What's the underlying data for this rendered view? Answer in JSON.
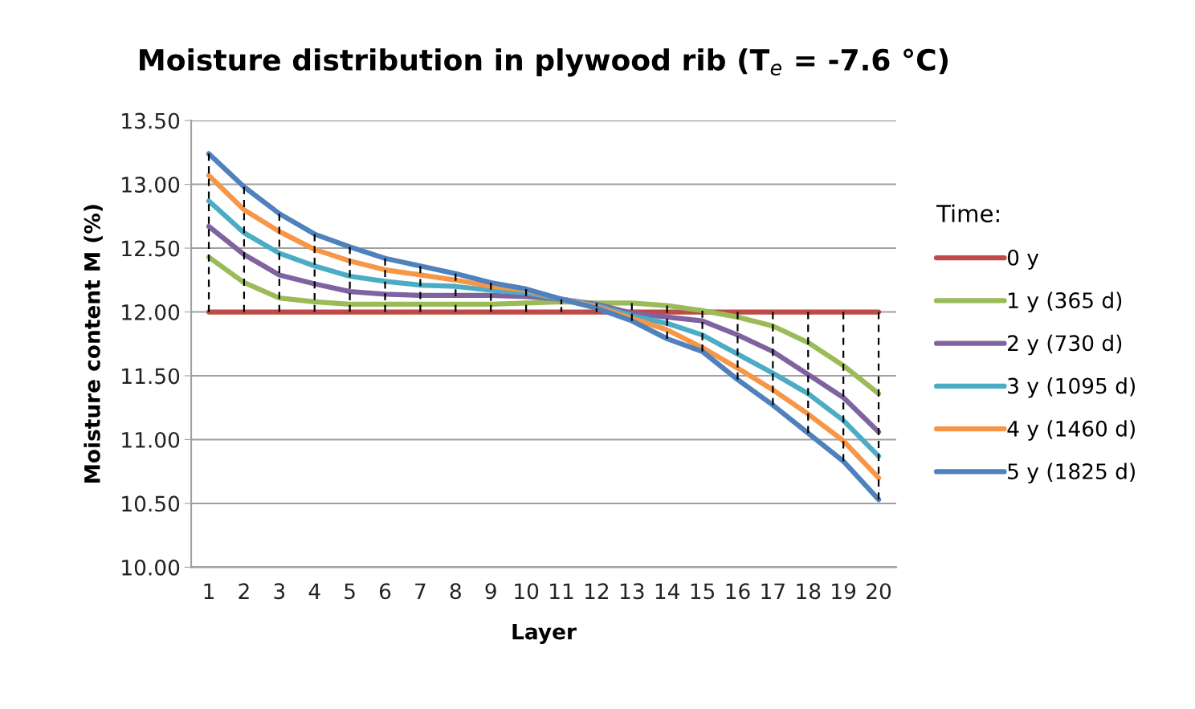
{
  "chart_data": {
    "type": "line",
    "title": "Moisture distribution in plywood rib (T$_{e}$ = -7.6 °C)",
    "xlabel": "Layer",
    "ylabel": "Moisture content M (%)",
    "legend_title": "Time:",
    "categories": [
      "1",
      "2",
      "3",
      "4",
      "5",
      "6",
      "7",
      "8",
      "9",
      "10",
      "11",
      "12",
      "13",
      "14",
      "15",
      "16",
      "17",
      "18",
      "19",
      "20"
    ],
    "series": [
      {
        "name": "0 y",
        "color": "#be4b48",
        "values": [
          12.0,
          12.0,
          12.0,
          12.0,
          12.0,
          12.0,
          12.0,
          12.0,
          12.0,
          12.0,
          12.0,
          12.0,
          12.0,
          12.0,
          12.0,
          12.0,
          12.0,
          12.0,
          12.0,
          12.0
        ]
      },
      {
        "name": "1 y (365 d)",
        "color": "#9bbb59",
        "values": [
          12.43,
          12.23,
          12.11,
          12.08,
          12.06,
          12.06,
          12.06,
          12.06,
          12.06,
          12.07,
          12.08,
          12.07,
          12.07,
          12.05,
          12.01,
          11.96,
          11.89,
          11.76,
          11.58,
          11.36
        ]
      },
      {
        "name": "2 y (730 d)",
        "color": "#7f63a1",
        "values": [
          12.67,
          12.45,
          12.29,
          12.22,
          12.16,
          12.14,
          12.13,
          12.13,
          12.13,
          12.12,
          12.1,
          12.06,
          11.99,
          11.96,
          11.93,
          11.82,
          11.69,
          11.51,
          11.33,
          11.06
        ]
      },
      {
        "name": "3 y (1095 d)",
        "color": "#4bacc6",
        "values": [
          12.87,
          12.62,
          12.46,
          12.36,
          12.28,
          12.24,
          12.21,
          12.2,
          12.17,
          12.15,
          12.1,
          12.05,
          11.97,
          11.91,
          11.82,
          11.67,
          11.52,
          11.36,
          11.15,
          10.87
        ]
      },
      {
        "name": "4 y (1460 d)",
        "color": "#f79646",
        "values": [
          13.07,
          12.8,
          12.63,
          12.49,
          12.4,
          12.33,
          12.29,
          12.25,
          12.2,
          12.17,
          12.1,
          12.04,
          11.95,
          11.86,
          11.72,
          11.56,
          11.39,
          11.2,
          10.99,
          10.7
        ]
      },
      {
        "name": "5 y (1825 d)",
        "color": "#4f81bd",
        "values": [
          13.24,
          12.98,
          12.77,
          12.61,
          12.51,
          12.42,
          12.36,
          12.3,
          12.23,
          12.18,
          12.1,
          12.03,
          11.93,
          11.79,
          11.69,
          11.47,
          11.27,
          11.05,
          10.83,
          10.53
        ]
      },
      {
        "color": "#000000",
        "line_style": "dashed",
        "x": [
          "1",
          "1"
        ],
        "values": [
          12.0,
          13.24
        ]
      },
      {
        "color": "#000000",
        "line_style": "dashed",
        "x": [
          "2",
          "2"
        ],
        "values": [
          12.0,
          12.98
        ]
      },
      {
        "color": "#000000",
        "line_style": "dashed",
        "x": [
          "3",
          "3"
        ],
        "values": [
          12.0,
          12.77
        ]
      },
      {
        "color": "#000000",
        "line_style": "dashed",
        "x": [
          "4",
          "4"
        ],
        "values": [
          12.0,
          12.61
        ]
      },
      {
        "color": "#000000",
        "line_style": "dashed",
        "x": [
          "5",
          "5"
        ],
        "values": [
          12.0,
          12.51
        ]
      },
      {
        "color": "#000000",
        "line_style": "dashed",
        "x": [
          "6",
          "6"
        ],
        "values": [
          12.0,
          12.42
        ]
      },
      {
        "color": "#000000",
        "line_style": "dashed",
        "x": [
          "7",
          "7"
        ],
        "values": [
          12.0,
          12.36
        ]
      },
      {
        "color": "#000000",
        "line_style": "dashed",
        "x": [
          "8",
          "8"
        ],
        "values": [
          12.0,
          12.3
        ]
      },
      {
        "color": "#000000",
        "line_style": "dashed",
        "x": [
          "9",
          "9"
        ],
        "values": [
          12.0,
          12.23
        ]
      },
      {
        "color": "#000000",
        "line_style": "dashed",
        "x": [
          "10",
          "10"
        ],
        "values": [
          12.0,
          12.18
        ]
      },
      {
        "color": "#000000",
        "line_style": "dashed",
        "x": [
          "11",
          "11"
        ],
        "values": [
          12.0,
          12.1
        ]
      },
      {
        "color": "#000000",
        "line_style": "dashed",
        "x": [
          "12",
          "12"
        ],
        "values": [
          12.0,
          12.07
        ]
      },
      {
        "color": "#000000",
        "line_style": "dashed",
        "x": [
          "13",
          "13"
        ],
        "values": [
          11.93,
          12.07
        ]
      },
      {
        "color": "#000000",
        "line_style": "dashed",
        "x": [
          "14",
          "14"
        ],
        "values": [
          11.79,
          12.05
        ]
      },
      {
        "color": "#000000",
        "line_style": "dashed",
        "x": [
          "15",
          "15"
        ],
        "values": [
          11.69,
          12.01
        ]
      },
      {
        "color": "#000000",
        "line_style": "dashed",
        "x": [
          "16",
          "16"
        ],
        "values": [
          11.47,
          12.0
        ]
      },
      {
        "color": "#000000",
        "line_style": "dashed",
        "x": [
          "17",
          "17"
        ],
        "values": [
          11.27,
          12.0
        ]
      },
      {
        "color": "#000000",
        "line_style": "dashed",
        "x": [
          "18",
          "18"
        ],
        "values": [
          11.05,
          12.0
        ]
      },
      {
        "color": "#000000",
        "line_style": "dashed",
        "x": [
          "19",
          "19"
        ],
        "values": [
          10.83,
          12.0
        ]
      },
      {
        "color": "#000000",
        "line_style": "dashed",
        "x": [
          "20",
          "20"
        ],
        "values": [
          10.53,
          12.0
        ]
      }
    ],
    "ylim": [
      10.0,
      13.5
    ],
    "yticks": [
      {
        "value": 10.0,
        "label": "10.00"
      },
      {
        "value": 10.5,
        "label": "10.50"
      },
      {
        "value": 11.0,
        "label": "11.00"
      },
      {
        "value": 11.5,
        "label": "11.50"
      },
      {
        "value": 12.0,
        "label": "12.00"
      },
      {
        "value": 12.5,
        "label": "12.50"
      },
      {
        "value": 13.0,
        "label": "13.00"
      },
      {
        "value": 13.5,
        "label": "13.50"
      }
    ],
    "grid": "y",
    "legend": "right",
    "marker": "none",
    "line_style": "solid"
  }
}
